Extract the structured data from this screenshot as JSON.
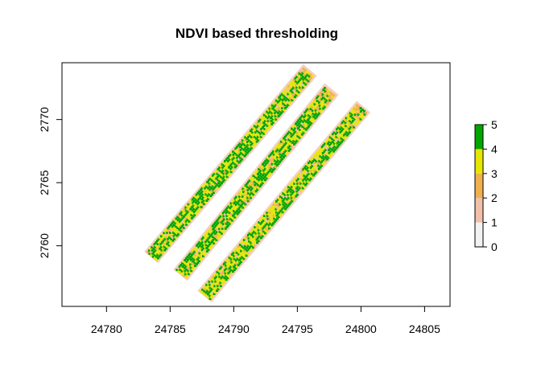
{
  "chart_data": {
    "type": "heatmap",
    "title": "NDVI based thresholding",
    "xlabel": "",
    "ylabel": "",
    "xlim": [
      24776.5,
      24807.0
    ],
    "ylim": [
      2755.2,
      2774.5
    ],
    "x_ticks": [
      {
        "value": 24780,
        "label": "24780"
      },
      {
        "value": 24785,
        "label": "24785"
      },
      {
        "value": 24790,
        "label": "24790"
      },
      {
        "value": 24795,
        "label": "24795"
      },
      {
        "value": 24800,
        "label": "24800"
      },
      {
        "value": 24805,
        "label": "24805"
      }
    ],
    "y_ticks": [
      {
        "value": 2760,
        "label": "2760"
      },
      {
        "value": 2765,
        "label": "2765"
      },
      {
        "value": 2770,
        "label": "2770"
      }
    ],
    "strips": [
      {
        "name": "strip-1",
        "start": [
          24783.6,
          2759.2
        ],
        "end": [
          24795.9,
          2773.8
        ],
        "width": 1.1,
        "dominant_class": 5
      },
      {
        "name": "strip-2",
        "start": [
          24785.9,
          2757.8
        ],
        "end": [
          24797.6,
          2772.3
        ],
        "width": 1.1,
        "dominant_class": 5
      },
      {
        "name": "strip-3",
        "start": [
          24787.8,
          2756.1
        ],
        "end": [
          24800.1,
          2770.9
        ],
        "width": 1.1,
        "dominant_class": 4
      }
    ],
    "legend": {
      "breaks": [
        0,
        1,
        2,
        3,
        4,
        5
      ],
      "labels": [
        "0",
        "1",
        "2",
        "3",
        "4",
        "5"
      ],
      "classes": [
        {
          "range": [
            0,
            1
          ],
          "color": "#f2f2f2"
        },
        {
          "range": [
            1,
            2
          ],
          "color": "#f0c0a8"
        },
        {
          "range": [
            2,
            3
          ],
          "color": "#f0b050"
        },
        {
          "range": [
            3,
            4
          ],
          "color": "#e6e600"
        },
        {
          "range": [
            4,
            5
          ],
          "color": "#00a600"
        }
      ],
      "placement": "right"
    },
    "grid": false
  }
}
